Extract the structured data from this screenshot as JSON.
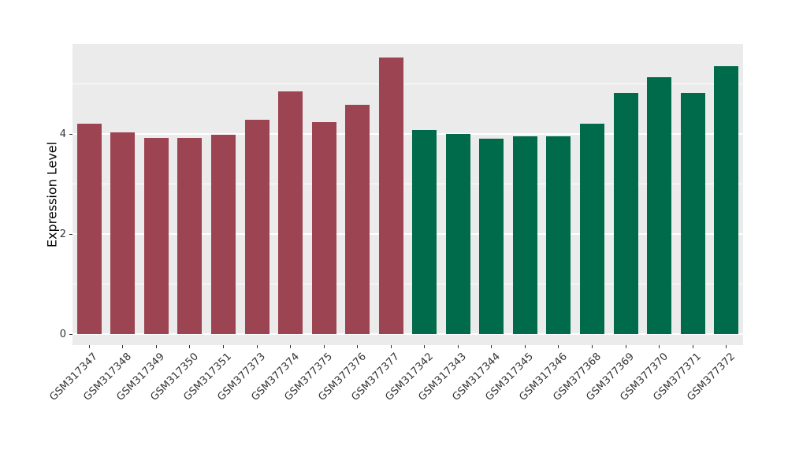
{
  "chart_data": {
    "type": "bar",
    "title": "",
    "xlabel": "",
    "ylabel": "Expression Level",
    "categories": [
      "GSM317347",
      "GSM317348",
      "GSM317349",
      "GSM317350",
      "GSM317351",
      "GSM377373",
      "GSM377374",
      "GSM377375",
      "GSM377376",
      "GSM377377",
      "GSM317342",
      "GSM317343",
      "GSM317344",
      "GSM317345",
      "GSM317346",
      "GSM377368",
      "GSM377369",
      "GSM377370",
      "GSM377371",
      "GSM377372"
    ],
    "values": [
      4.21,
      4.03,
      3.92,
      3.92,
      3.98,
      4.28,
      4.85,
      4.23,
      4.58,
      5.52,
      4.08,
      4.0,
      3.9,
      3.96,
      3.96,
      4.21,
      4.82,
      5.13,
      4.82,
      5.35
    ],
    "groups": [
      "group1",
      "group1",
      "group1",
      "group1",
      "group1",
      "group1",
      "group1",
      "group1",
      "group1",
      "group1",
      "group2",
      "group2",
      "group2",
      "group2",
      "group2",
      "group2",
      "group2",
      "group2",
      "group2",
      "group2"
    ],
    "group_colors": {
      "group1": "#9D4452",
      "group2": "#006B4A"
    },
    "yticks": [
      0,
      2,
      4
    ],
    "minor_gridlines": [
      1,
      3,
      5
    ],
    "ylim": [
      -0.22,
      5.8
    ],
    "grid": true,
    "legend_position": "none",
    "panel_background": "#EBEBEB",
    "grid_color": "#FFFFFF",
    "tick_label_color": "#333333"
  }
}
